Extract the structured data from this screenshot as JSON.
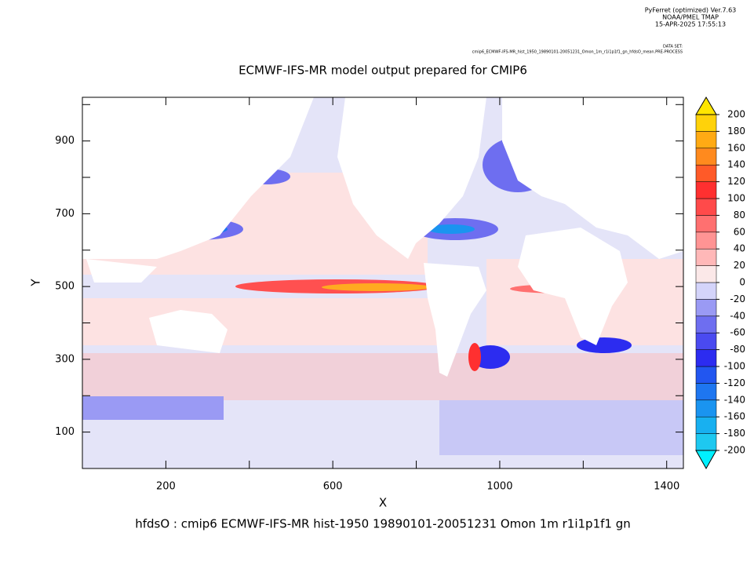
{
  "header": {
    "software": "PyFerret (optimized) Ver.7.63",
    "org": "NOAA/PMEL TMAP",
    "timestamp": "15-APR-2025 17:55:13",
    "dataset_label": "DATA SET:",
    "dataset": "cmip6_ECMWF-IFS-MR_hist_1950_19890101-20051231_Omon_1m_r1i1p1f1_gn_hfdsO_mean.PRE-PROCESS"
  },
  "chart_data": {
    "type": "shade",
    "title": "ECMWF-IFS-MR model output prepared for CMIP6",
    "x_label": "X",
    "y_label": "Y",
    "caption": "hfdsO : cmip6 ECMWF-IFS-MR hist-1950 19890101-20051231 Omon 1m r1i1p1f1 gn",
    "xlim": [
      0,
      1440
    ],
    "ylim": [
      0,
      1020
    ],
    "xticks": [
      200,
      600,
      1000,
      1400
    ],
    "xminor_ticks": [
      400,
      800,
      1200
    ],
    "yticks": [
      100,
      300,
      500,
      700,
      900
    ],
    "yminor_ticks": [
      200,
      400,
      600,
      800,
      1000
    ],
    "colorbar": {
      "levels": [
        -200,
        -180,
        -160,
        -140,
        -120,
        -100,
        -80,
        -60,
        -40,
        -20,
        0,
        20,
        40,
        60,
        80,
        100,
        120,
        140,
        160,
        180,
        200
      ],
      "colors": [
        "#1ec8f0",
        "#18b0f0",
        "#1a94f0",
        "#1e76f0",
        "#2256f0",
        "#2c2cf0",
        "#4a4af0",
        "#6e6ef0",
        "#9a9af4",
        "#d4d4fa",
        "#fbe8e8",
        "#ffb8b8",
        "#ff9494",
        "#ff7070",
        "#ff4a4a",
        "#ff3030",
        "#ff5a28",
        "#ff8a1e",
        "#ffaa14",
        "#ffd20a"
      ],
      "under_color": "#00f0ff",
      "over_color": "#ffe600"
    }
  }
}
